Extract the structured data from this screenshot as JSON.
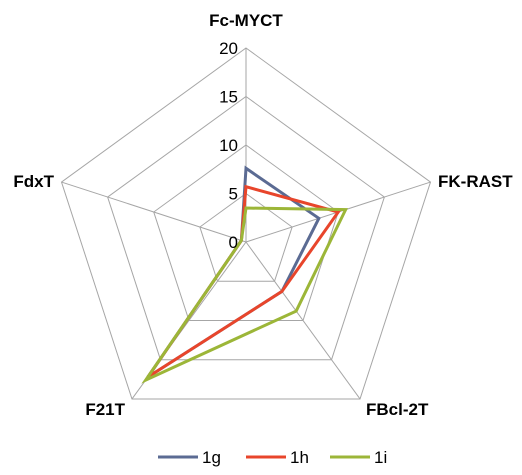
{
  "chart_data": {
    "type": "radar",
    "axes": [
      "Fc-MYCT",
      "FK-RAST",
      "FBcl-2T",
      "F21T",
      "FdxT"
    ],
    "ticks": [
      "0",
      "5",
      "10",
      "15",
      "20"
    ],
    "tick_values": [
      0,
      5,
      10,
      15,
      20
    ],
    "rmax": 20,
    "legend_position": "bottom",
    "series": [
      {
        "name": "1g",
        "color": "#5b6b93",
        "values": [
          7.6,
          7.9,
          6.3,
          17.2,
          0.5
        ]
      },
      {
        "name": "1h",
        "color": "#e8452b",
        "values": [
          5.7,
          10.0,
          6.3,
          17.2,
          0.5
        ]
      },
      {
        "name": "1i",
        "color": "#9cb638",
        "values": [
          3.5,
          10.8,
          8.8,
          17.6,
          0.5
        ]
      }
    ]
  }
}
